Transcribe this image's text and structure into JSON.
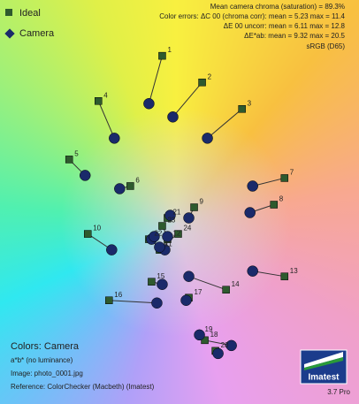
{
  "chart_data": {
    "type": "scatter",
    "info": [
      "Mean camera chroma (saturation) = 89.3%",
      "Color errors: ΔC 00 (chroma corr): mean = 5.23  max = 11.4",
      "ΔE 00 uncorr: mean = 6.11  max = 12.8",
      "ΔE*ab: mean = 9.32  max = 20.5",
      "sRGB (D65)"
    ],
    "notes": [
      "Colors: Camera",
      "a*b* (no luminance)",
      "Image: photo_0001.jpg",
      "Reference: ColorChecker (Macbeth) (Imatest)"
    ],
    "logo": "Imatest",
    "version": "3.7 Pro",
    "categories": [
      "1",
      "2",
      "3",
      "4",
      "5",
      "6",
      "7",
      "8",
      "9",
      "10",
      "11",
      "12",
      "13",
      "14",
      "15",
      "16",
      "17",
      "18",
      "19",
      "20",
      "21",
      "22",
      "23",
      "24"
    ],
    "xlim": [
      -70,
      65
    ],
    "ylim": [
      -69,
      83
    ],
    "series": [
      {
        "name": "Ideal",
        "color": "#2e5a2e",
        "marker": "square",
        "x": [
          -9,
          6,
          21,
          -33,
          -44,
          -21,
          37,
          33,
          3,
          -37,
          -10,
          -7,
          37,
          15,
          -13,
          -29,
          1,
          7,
          5,
          11,
          -7,
          -14,
          -9,
          -3
        ],
        "y": [
          62,
          52,
          42,
          45,
          23,
          13,
          16,
          6,
          5,
          -5,
          -11,
          -7,
          -21,
          -26,
          -23,
          -30,
          -29,
          -45,
          -43,
          -49,
          1,
          -7,
          -2,
          -5
        ]
      },
      {
        "name": "Camera",
        "color": "#1a2a6a",
        "marker": "circle",
        "x": [
          -14,
          -5,
          8,
          -27,
          -38,
          -25,
          25,
          24,
          1,
          -28,
          -13,
          -8,
          25,
          1,
          -9,
          -11,
          0,
          17,
          5,
          12,
          -6,
          -12,
          -7,
          -10
        ],
        "y": [
          44,
          39,
          31,
          31,
          17,
          12,
          13,
          3,
          1,
          -11,
          -7,
          -11,
          -19,
          -21,
          -24,
          -31,
          -30,
          -47,
          -43,
          -50,
          2,
          -6,
          -6,
          -10
        ]
      }
    ]
  }
}
